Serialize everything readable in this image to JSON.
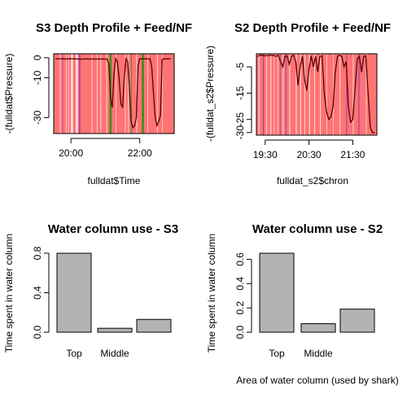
{
  "colors": {
    "background": "#ffffff",
    "feed_band": "#ff0000",
    "nf_band": "#0000ff",
    "green_band": "#009900",
    "depth_line": "#5a0000",
    "bar_fill": "#b3b3b3"
  },
  "chart_data": [
    {
      "type": "line",
      "title": "S3 Depth Profile + Feed/NF",
      "xlabel": "fulldat$Time",
      "ylabel": "-(fulldat$Pressure)",
      "xlim": [
        19.5,
        23.0
      ],
      "ylim": [
        -38,
        2
      ],
      "x_ticks": [
        {
          "v": 20.0,
          "label": "20:00"
        },
        {
          "v": 22.0,
          "label": "22:00"
        }
      ],
      "y_ticks": [
        {
          "v": 0,
          "label": "0"
        },
        {
          "v": -10,
          "label": "-10"
        },
        {
          "v": -30,
          "label": "-30"
        }
      ],
      "grid": false,
      "bands": [
        {
          "x0": 19.5,
          "x1": 23.0,
          "color": "red",
          "opacity": 0.55
        },
        {
          "x0": 19.68,
          "x1": 19.7,
          "color": "white",
          "opacity": 0.8
        },
        {
          "x0": 19.75,
          "x1": 19.77,
          "color": "blue",
          "opacity": 0.35
        },
        {
          "x0": 19.85,
          "x1": 19.87,
          "color": "white",
          "opacity": 0.7
        },
        {
          "x0": 19.92,
          "x1": 19.94,
          "color": "white",
          "opacity": 0.8
        },
        {
          "x0": 20.0,
          "x1": 20.06,
          "color": "white",
          "opacity": 0.8
        },
        {
          "x0": 20.14,
          "x1": 20.2,
          "color": "white",
          "opacity": 0.8
        },
        {
          "x0": 20.24,
          "x1": 20.27,
          "color": "blue",
          "opacity": 0.5
        },
        {
          "x0": 20.6,
          "x1": 20.62,
          "color": "white",
          "opacity": 0.8
        },
        {
          "x0": 20.75,
          "x1": 20.77,
          "color": "white",
          "opacity": 0.8
        },
        {
          "x0": 20.86,
          "x1": 20.88,
          "color": "white",
          "opacity": 0.8
        },
        {
          "x0": 21.03,
          "x1": 21.05,
          "color": "white",
          "opacity": 0.8
        },
        {
          "x0": 21.12,
          "x1": 21.18,
          "color": "green",
          "opacity": 0.8
        },
        {
          "x0": 21.3,
          "x1": 21.32,
          "color": "white",
          "opacity": 0.7
        },
        {
          "x0": 21.57,
          "x1": 21.59,
          "color": "white",
          "opacity": 0.8
        },
        {
          "x0": 21.66,
          "x1": 21.68,
          "color": "white",
          "opacity": 0.8
        },
        {
          "x0": 21.75,
          "x1": 21.77,
          "color": "green",
          "opacity": 0.8
        },
        {
          "x0": 21.9,
          "x1": 21.92,
          "color": "white",
          "opacity": 0.8
        },
        {
          "x0": 22.06,
          "x1": 22.12,
          "color": "green",
          "opacity": 0.8
        },
        {
          "x0": 22.22,
          "x1": 22.24,
          "color": "white",
          "opacity": 0.7
        },
        {
          "x0": 22.5,
          "x1": 22.52,
          "color": "white",
          "opacity": 0.8
        },
        {
          "x0": 22.65,
          "x1": 22.67,
          "color": "white",
          "opacity": 0.6
        }
      ],
      "series": [
        {
          "x": [
            19.55,
            19.6,
            19.7,
            19.8,
            19.9,
            20.0,
            20.1,
            20.2,
            20.3,
            20.4,
            20.5,
            20.55,
            20.6,
            20.65,
            20.7,
            20.75,
            20.8,
            20.85,
            20.9,
            20.95,
            21.0,
            21.05,
            21.1,
            21.15,
            21.2,
            21.25,
            21.3,
            21.35,
            21.4,
            21.45,
            21.5,
            21.55,
            21.6,
            21.65,
            21.7,
            21.75,
            21.8,
            21.85,
            21.9,
            21.95,
            22.0,
            22.05,
            22.1,
            22.15,
            22.2,
            22.25,
            22.3,
            22.35,
            22.4,
            22.45,
            22.5,
            22.55,
            22.6,
            22.65,
            22.7,
            22.75,
            22.8,
            22.85,
            22.9
          ],
          "y": [
            -0.5,
            -0.5,
            -0.5,
            -0.6,
            -0.6,
            -0.5,
            -0.6,
            -0.6,
            -0.7,
            -0.6,
            -0.6,
            -0.7,
            -0.6,
            -0.6,
            -0.7,
            -0.6,
            -0.6,
            -0.7,
            -0.6,
            -0.6,
            -0.7,
            -0.6,
            -3,
            -20,
            -25,
            -8,
            -0.5,
            -2,
            -10,
            -23,
            -25,
            -10,
            -0.5,
            -2,
            -15,
            -32,
            -35,
            -34,
            -30,
            -4,
            -0.5,
            -0.6,
            -0.5,
            -0.6,
            -0.5,
            -0.6,
            -0.6,
            -5,
            -18,
            -30,
            -34,
            -32,
            -29,
            -1,
            -0.5,
            -0.7,
            -0.5,
            -0.6,
            -0.5
          ]
        }
      ]
    },
    {
      "type": "line",
      "title": "S2 Depth Profile + Feed/NF",
      "xlabel": "fulldat_s2$chron",
      "ylabel": "-(fulldat_s2$Pressure)",
      "xlim": [
        19.3,
        22.05
      ],
      "ylim": [
        -31,
        0
      ],
      "x_ticks": [
        {
          "v": 19.5,
          "label": "19:30"
        },
        {
          "v": 20.5,
          "label": "20:30"
        },
        {
          "v": 21.5,
          "label": "21:30"
        }
      ],
      "y_ticks": [
        {
          "v": -5,
          "label": "-5"
        },
        {
          "v": -15,
          "label": "-15"
        },
        {
          "v": -25,
          "label": "-25"
        },
        {
          "v": -30,
          "label": "-30"
        }
      ],
      "grid": false,
      "bands": [
        {
          "x0": 19.3,
          "x1": 22.05,
          "color": "red",
          "opacity": 0.55
        },
        {
          "x0": 19.35,
          "x1": 19.37,
          "color": "white",
          "opacity": 0.7
        },
        {
          "x0": 19.45,
          "x1": 19.47,
          "color": "blue",
          "opacity": 0.45
        },
        {
          "x0": 19.52,
          "x1": 19.54,
          "color": "white",
          "opacity": 0.7
        },
        {
          "x0": 19.62,
          "x1": 19.64,
          "color": "white",
          "opacity": 0.8
        },
        {
          "x0": 19.7,
          "x1": 19.71,
          "color": "white",
          "opacity": 0.7
        },
        {
          "x0": 19.78,
          "x1": 19.79,
          "color": "white",
          "opacity": 0.8
        },
        {
          "x0": 19.84,
          "x1": 19.85,
          "color": "blue",
          "opacity": 0.35
        },
        {
          "x0": 19.9,
          "x1": 19.92,
          "color": "white",
          "opacity": 0.8
        },
        {
          "x0": 19.96,
          "x1": 19.99,
          "color": "blue",
          "opacity": 0.25
        },
        {
          "x0": 20.05,
          "x1": 20.07,
          "color": "white",
          "opacity": 0.8
        },
        {
          "x0": 20.2,
          "x1": 20.22,
          "color": "white",
          "opacity": 0.8
        },
        {
          "x0": 20.3,
          "x1": 20.32,
          "color": "white",
          "opacity": 0.8
        },
        {
          "x0": 20.4,
          "x1": 20.41,
          "color": "white",
          "opacity": 0.8
        },
        {
          "x0": 20.5,
          "x1": 20.52,
          "color": "white",
          "opacity": 0.8
        },
        {
          "x0": 20.62,
          "x1": 20.64,
          "color": "white",
          "opacity": 0.7
        },
        {
          "x0": 20.75,
          "x1": 20.77,
          "color": "white",
          "opacity": 0.7
        },
        {
          "x0": 20.9,
          "x1": 20.91,
          "color": "white",
          "opacity": 0.7
        },
        {
          "x0": 21.05,
          "x1": 21.06,
          "color": "white",
          "opacity": 0.6
        },
        {
          "x0": 21.2,
          "x1": 21.22,
          "color": "white",
          "opacity": 0.7
        },
        {
          "x0": 21.35,
          "x1": 21.37,
          "color": "blue",
          "opacity": 0.4
        },
        {
          "x0": 21.5,
          "x1": 21.52,
          "color": "white",
          "opacity": 0.6
        },
        {
          "x0": 21.63,
          "x1": 21.65,
          "color": "blue",
          "opacity": 0.45
        },
        {
          "x0": 21.8,
          "x1": 21.82,
          "color": "white",
          "opacity": 0.6
        }
      ],
      "series": [
        {
          "x": [
            19.32,
            19.4,
            19.5,
            19.6,
            19.7,
            19.75,
            19.8,
            19.85,
            19.9,
            19.95,
            20.0,
            20.05,
            20.1,
            20.15,
            20.2,
            20.25,
            20.3,
            20.35,
            20.4,
            20.45,
            20.5,
            20.55,
            20.6,
            20.65,
            20.7,
            20.75,
            20.8,
            20.85,
            20.9,
            20.95,
            21.0,
            21.05,
            21.1,
            21.15,
            21.2,
            21.25,
            21.3,
            21.35,
            21.4,
            21.45,
            21.5,
            21.55,
            21.6,
            21.65,
            21.7,
            21.75,
            21.8,
            21.85,
            21.9,
            21.95,
            22.0
          ],
          "y": [
            -1,
            -0.5,
            -0.8,
            -0.6,
            -0.7,
            -1.0,
            -0.6,
            -3,
            -5,
            -1,
            -0.8,
            -4,
            -1,
            -0.6,
            -3,
            -12,
            -5,
            -1,
            -10,
            -14,
            -6,
            -0.8,
            -5,
            -1,
            -7,
            -1,
            -0.8,
            -15,
            -22,
            -25,
            -24,
            -20,
            -7,
            -1,
            -0.6,
            -1,
            -5,
            -3,
            -20,
            -26,
            -25,
            -14,
            -2,
            -1,
            -7,
            -1,
            -0.8,
            -15,
            -28,
            -30,
            -30
          ]
        }
      ]
    },
    {
      "type": "bar",
      "title": "Water column use - S3",
      "xlabel": "",
      "ylabel": "Time spent in water column",
      "categories": [
        "Top",
        "Middle",
        ""
      ],
      "values": [
        0.8,
        0.04,
        0.13
      ],
      "ylim": [
        0,
        0.8
      ],
      "y_ticks": [
        {
          "v": 0.0,
          "label": "0.0"
        },
        {
          "v": 0.4,
          "label": "0.4"
        },
        {
          "v": 0.8,
          "label": "0.8"
        }
      ],
      "grid": false
    },
    {
      "type": "bar",
      "title": "Water column use - S2",
      "xlabel": "Area of water column (used by shark)",
      "ylabel": "Time spent in water column",
      "categories": [
        "Top",
        "Middle",
        ""
      ],
      "values": [
        0.65,
        0.07,
        0.19
      ],
      "ylim": [
        0,
        0.65
      ],
      "y_ticks": [
        {
          "v": 0.0,
          "label": "0.0"
        },
        {
          "v": 0.2,
          "label": "0.2"
        },
        {
          "v": 0.4,
          "label": "0.4"
        },
        {
          "v": 0.6,
          "label": "0.6"
        }
      ],
      "grid": false
    }
  ]
}
